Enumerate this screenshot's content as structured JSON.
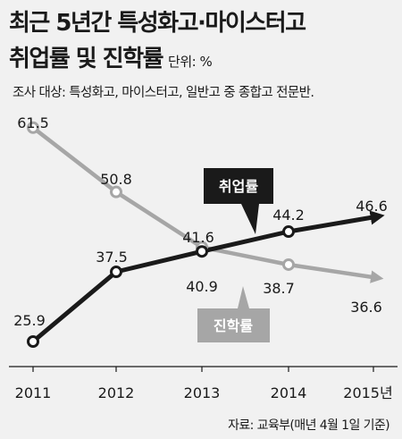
{
  "header": {
    "title_line1": "최근 5년간 특성화고·마이스터고",
    "title_line2": "취업률 및 진학률",
    "unit": "단위: %",
    "subtitle": "조사 대상: 특성화고, 마이스터고, 일반고 중 종합고 전문반."
  },
  "footer": {
    "source": "자료: 교육부(매년 4월 1일 기준)"
  },
  "colors": {
    "employment": "#1a1a1a",
    "advancement": "#a6a6a6",
    "background": "#f1f1f1"
  },
  "chart_data": {
    "type": "line",
    "categories": [
      "2011",
      "2012",
      "2013",
      "2014",
      "2015년"
    ],
    "series": [
      {
        "name": "취업률",
        "key": "employment",
        "values": [
          25.9,
          37.5,
          40.9,
          44.2,
          46.6
        ],
        "labels": [
          "25.9",
          "37.5",
          "40.9",
          "44.2",
          "46.6"
        ]
      },
      {
        "name": "진학률",
        "key": "advancement",
        "values": [
          61.5,
          50.8,
          41.6,
          38.7,
          36.6
        ],
        "labels": [
          "61.5",
          "50.8",
          "41.6",
          "38.7",
          "36.6"
        ]
      }
    ],
    "grid": false,
    "legend": "inline labels"
  }
}
